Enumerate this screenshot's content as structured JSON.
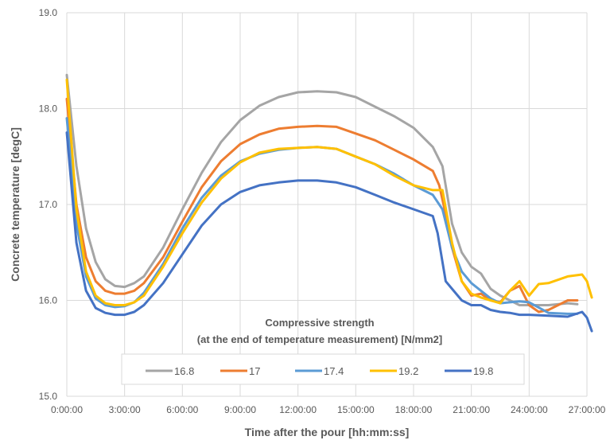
{
  "chart_data": {
    "type": "line",
    "title": "",
    "xlabel": "Time after the pour [hh:mm:ss]",
    "ylabel": "Concrete temperature [degC]",
    "xlim": [
      "0:00:00",
      "27:00:00"
    ],
    "ylim": [
      15.0,
      19.0
    ],
    "x_ticks": [
      "0:00:00",
      "3:00:00",
      "6:00:00",
      "9:00:00",
      "12:00:00",
      "15:00:00",
      "18:00:00",
      "21:00:00",
      "24:00:00",
      "27:00:00"
    ],
    "y_ticks": [
      "15.0",
      "16.0",
      "17.0",
      "18.0",
      "19.0"
    ],
    "grid": true,
    "legend": {
      "title_line1": "Compressive strength",
      "title_line2": "(at the end of temperature measurement) [N/mm2]",
      "placement": "bottom-center"
    },
    "series": [
      {
        "name": "16.8",
        "color": "#a5a5a5",
        "x": [
          "0:00:00",
          "0:30:00",
          "1:00:00",
          "1:30:00",
          "2:00:00",
          "2:30:00",
          "3:00:00",
          "3:30:00",
          "4:00:00",
          "5:00:00",
          "6:00:00",
          "7:00:00",
          "8:00:00",
          "9:00:00",
          "10:00:00",
          "11:00:00",
          "12:00:00",
          "13:00:00",
          "14:00:00",
          "15:00:00",
          "16:00:00",
          "17:00:00",
          "18:00:00",
          "19:00:00",
          "19:30:00",
          "20:00:00",
          "20:30:00",
          "21:00:00",
          "21:30:00",
          "22:00:00",
          "22:30:00",
          "23:00:00",
          "23:30:00",
          "24:00:00",
          "25:00:00",
          "26:00:00",
          "26:30:00"
        ],
        "y": [
          18.35,
          17.4,
          16.75,
          16.4,
          16.22,
          16.15,
          16.14,
          16.18,
          16.25,
          16.55,
          16.95,
          17.33,
          17.65,
          17.88,
          18.03,
          18.12,
          18.17,
          18.18,
          18.17,
          18.12,
          18.02,
          17.92,
          17.8,
          17.6,
          17.4,
          16.8,
          16.5,
          16.35,
          16.28,
          16.12,
          16.05,
          16.0,
          15.95,
          15.95,
          15.95,
          15.97,
          15.96
        ]
      },
      {
        "name": "17",
        "color": "#ed7d31",
        "x": [
          "0:00:00",
          "0:30:00",
          "1:00:00",
          "1:30:00",
          "2:00:00",
          "2:30:00",
          "3:00:00",
          "3:30:00",
          "4:00:00",
          "5:00:00",
          "6:00:00",
          "7:00:00",
          "8:00:00",
          "9:00:00",
          "10:00:00",
          "11:00:00",
          "12:00:00",
          "13:00:00",
          "14:00:00",
          "15:00:00",
          "16:00:00",
          "17:00:00",
          "18:00:00",
          "19:00:00",
          "19:20:00",
          "19:40:00",
          "20:00:00",
          "20:30:00",
          "21:00:00",
          "21:30:00",
          "22:00:00",
          "22:30:00",
          "23:00:00",
          "23:30:00",
          "24:00:00",
          "24:30:00",
          "25:00:00",
          "26:00:00",
          "26:30:00"
        ],
        "y": [
          18.1,
          17.0,
          16.45,
          16.2,
          16.1,
          16.07,
          16.07,
          16.1,
          16.18,
          16.45,
          16.82,
          17.18,
          17.45,
          17.63,
          17.73,
          17.79,
          17.81,
          17.82,
          17.81,
          17.74,
          17.67,
          17.57,
          17.47,
          17.35,
          17.2,
          16.9,
          16.55,
          16.2,
          16.05,
          16.07,
          16.0,
          15.98,
          16.1,
          16.15,
          15.95,
          15.88,
          15.9,
          16.0,
          16.0
        ]
      },
      {
        "name": "17.4",
        "color": "#5b9bd5",
        "x": [
          "0:00:00",
          "0:30:00",
          "1:00:00",
          "1:30:00",
          "2:00:00",
          "2:30:00",
          "3:00:00",
          "3:30:00",
          "4:00:00",
          "5:00:00",
          "6:00:00",
          "7:00:00",
          "8:00:00",
          "9:00:00",
          "10:00:00",
          "11:00:00",
          "12:00:00",
          "13:00:00",
          "14:00:00",
          "15:00:00",
          "16:00:00",
          "17:00:00",
          "18:00:00",
          "19:00:00",
          "19:30:00",
          "20:00:00",
          "20:30:00",
          "21:00:00",
          "21:30:00",
          "22:00:00",
          "22:30:00",
          "23:00:00",
          "23:30:00",
          "24:00:00",
          "25:00:00",
          "26:00:00",
          "26:30:00"
        ],
        "y": [
          17.9,
          16.8,
          16.25,
          16.02,
          15.95,
          15.93,
          15.94,
          15.98,
          16.08,
          16.38,
          16.75,
          17.07,
          17.3,
          17.45,
          17.53,
          17.57,
          17.59,
          17.6,
          17.58,
          17.5,
          17.42,
          17.32,
          17.2,
          17.1,
          16.95,
          16.55,
          16.3,
          16.18,
          16.1,
          16.02,
          15.97,
          15.98,
          15.99,
          15.98,
          15.87,
          15.86,
          15.86
        ]
      },
      {
        "name": "19.2",
        "color": "#ffc000",
        "x": [
          "0:00:00",
          "0:30:00",
          "1:00:00",
          "1:30:00",
          "2:00:00",
          "2:30:00",
          "3:00:00",
          "3:30:00",
          "4:00:00",
          "5:00:00",
          "6:00:00",
          "7:00:00",
          "8:00:00",
          "9:00:00",
          "10:00:00",
          "11:00:00",
          "12:00:00",
          "13:00:00",
          "14:00:00",
          "15:00:00",
          "16:00:00",
          "17:00:00",
          "18:00:00",
          "19:00:00",
          "19:30:00",
          "20:00:00",
          "20:30:00",
          "21:00:00",
          "21:30:00",
          "22:00:00",
          "22:30:00",
          "23:00:00",
          "23:30:00",
          "24:00:00",
          "24:30:00",
          "25:00:00",
          "26:00:00",
          "26:45:00",
          "27:00:00",
          "27:15:00"
        ],
        "y": [
          18.3,
          16.95,
          16.3,
          16.05,
          15.97,
          15.95,
          15.95,
          15.98,
          16.05,
          16.35,
          16.7,
          17.02,
          17.27,
          17.44,
          17.54,
          17.58,
          17.59,
          17.6,
          17.58,
          17.5,
          17.42,
          17.3,
          17.2,
          17.15,
          17.15,
          16.6,
          16.2,
          16.07,
          16.03,
          16.0,
          15.97,
          16.1,
          16.2,
          16.05,
          16.17,
          16.18,
          16.25,
          16.27,
          16.2,
          16.03
        ]
      },
      {
        "name": "19.8",
        "color": "#4472c4",
        "x": [
          "0:00:00",
          "0:30:00",
          "1:00:00",
          "1:30:00",
          "2:00:00",
          "2:30:00",
          "3:00:00",
          "3:30:00",
          "4:00:00",
          "5:00:00",
          "6:00:00",
          "7:00:00",
          "8:00:00",
          "9:00:00",
          "10:00:00",
          "11:00:00",
          "12:00:00",
          "13:00:00",
          "14:00:00",
          "15:00:00",
          "16:00:00",
          "17:00:00",
          "18:00:00",
          "19:00:00",
          "19:15:00",
          "19:40:00",
          "20:00:00",
          "20:30:00",
          "21:00:00",
          "21:30:00",
          "22:00:00",
          "22:30:00",
          "23:00:00",
          "23:30:00",
          "24:00:00",
          "25:00:00",
          "26:00:00",
          "26:45:00",
          "27:00:00",
          "27:15:00"
        ],
        "y": [
          17.75,
          16.6,
          16.1,
          15.92,
          15.87,
          15.85,
          15.85,
          15.88,
          15.95,
          16.18,
          16.48,
          16.78,
          17.0,
          17.13,
          17.2,
          17.23,
          17.25,
          17.25,
          17.23,
          17.18,
          17.1,
          17.02,
          16.95,
          16.88,
          16.7,
          16.2,
          16.12,
          16.0,
          15.95,
          15.95,
          15.9,
          15.88,
          15.87,
          15.85,
          15.85,
          15.84,
          15.83,
          15.88,
          15.82,
          15.68
        ]
      }
    ]
  }
}
